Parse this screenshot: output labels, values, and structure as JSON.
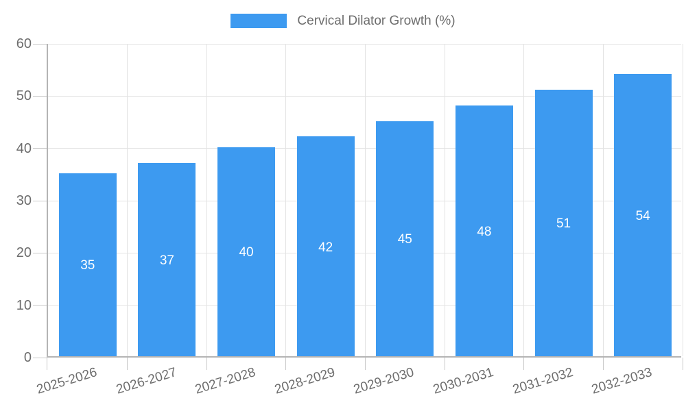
{
  "chart_data": {
    "type": "bar",
    "title": "Cervical Dilator Growth (%)",
    "categories": [
      "2025-2026",
      "2026-2027",
      "2027-2028",
      "2028-2029",
      "2029-2030",
      "2030-2031",
      "2031-2032",
      "2032-2033"
    ],
    "values": [
      35,
      37,
      40,
      42,
      45,
      48,
      51,
      54
    ],
    "xlabel": "",
    "ylabel": "",
    "ylim": [
      0,
      60
    ],
    "yticks": [
      0,
      10,
      20,
      30,
      40,
      50,
      60
    ],
    "grid": true,
    "legend_position": "top",
    "value_labels": "inside-center",
    "colors": {
      "bar": "#3d9af0",
      "grid": "#e3e3e3",
      "axis": "#b4b4b4",
      "tick": "#c9c9c9",
      "text": "#6d6d6d",
      "value_text": "#ffffff",
      "background": "#ffffff"
    }
  }
}
